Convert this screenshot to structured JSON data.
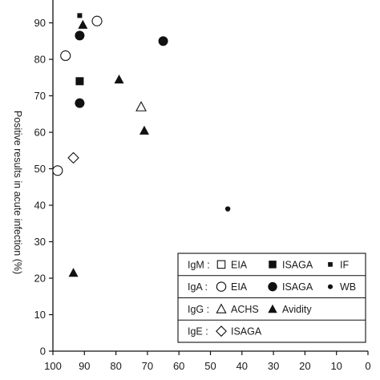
{
  "chart_data": {
    "type": "scatter",
    "ylabel": "Positive results in acute infection  (%)",
    "xlabel": "",
    "xlim": [
      100,
      0
    ],
    "ylim": [
      0,
      95
    ],
    "x_ticks": [
      100,
      90,
      80,
      70,
      60,
      50,
      40,
      30,
      20,
      10,
      0
    ],
    "y_ticks": [
      0,
      10,
      20,
      30,
      40,
      50,
      60,
      70,
      80,
      90
    ],
    "grid": false,
    "legend_position": "bottom-right",
    "legend": {
      "groups": [
        {
          "label": "IgM :",
          "entries": [
            {
              "symbol": "open-square",
              "text": "EIA"
            },
            {
              "symbol": "filled-square",
              "text": "ISAGA"
            },
            {
              "symbol": "small-filled-square",
              "text": "IF"
            }
          ]
        },
        {
          "label": "IgA :",
          "entries": [
            {
              "symbol": "open-circle",
              "text": "EIA"
            },
            {
              "symbol": "filled-circle",
              "text": "ISAGA"
            },
            {
              "symbol": "small-filled-circle",
              "text": "WB"
            }
          ]
        },
        {
          "label": "IgG :",
          "entries": [
            {
              "symbol": "open-triangle",
              "text": "ACHS"
            },
            {
              "symbol": "filled-triangle",
              "text": "Avidity"
            }
          ]
        },
        {
          "label": "IgE :",
          "entries": [
            {
              "symbol": "open-diamond",
              "text": "ISAGA"
            }
          ]
        }
      ]
    },
    "series": [
      {
        "symbol": "small-filled-square",
        "points": [
          {
            "x": 91.5,
            "y": 92
          }
        ]
      },
      {
        "symbol": "filled-square",
        "points": [
          {
            "x": 91.5,
            "y": 74
          }
        ]
      },
      {
        "symbol": "open-circle",
        "points": [
          {
            "x": 86,
            "y": 90.5
          },
          {
            "x": 96,
            "y": 81
          },
          {
            "x": 98.5,
            "y": 49.5
          }
        ]
      },
      {
        "symbol": "filled-circle",
        "points": [
          {
            "x": 91.5,
            "y": 86.5
          },
          {
            "x": 91.5,
            "y": 68
          },
          {
            "x": 65,
            "y": 85
          }
        ]
      },
      {
        "symbol": "small-filled-circle",
        "points": [
          {
            "x": 44.5,
            "y": 39
          }
        ]
      },
      {
        "symbol": "open-triangle",
        "points": [
          {
            "x": 72,
            "y": 67
          }
        ]
      },
      {
        "symbol": "filled-triangle",
        "points": [
          {
            "x": 90.5,
            "y": 89.5
          },
          {
            "x": 79,
            "y": 74.5
          },
          {
            "x": 71,
            "y": 60.5
          },
          {
            "x": 93.5,
            "y": 21.5
          }
        ]
      },
      {
        "symbol": "open-diamond",
        "points": [
          {
            "x": 93.5,
            "y": 53
          }
        ]
      }
    ]
  }
}
